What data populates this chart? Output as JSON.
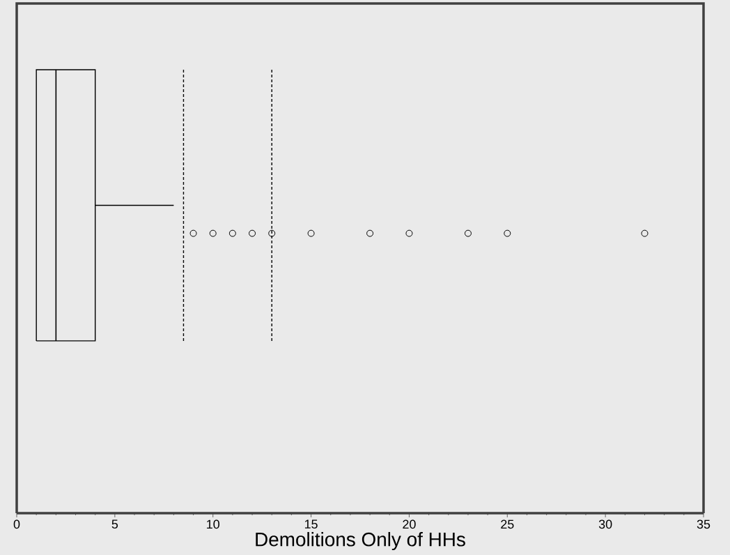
{
  "chart_data": {
    "type": "box",
    "orientation": "horizontal",
    "xlabel": "Demolitions Only of HHs",
    "categories": [
      null
    ],
    "boxes": [
      {
        "low": 1,
        "q1": 1,
        "median": 2,
        "q3": 4,
        "high": 8,
        "outliers": [
          9,
          10,
          11,
          12,
          13,
          15,
          18,
          20,
          23,
          25,
          32
        ]
      }
    ],
    "xlim": [
      0,
      35
    ],
    "xticks": [
      0,
      5,
      10,
      15,
      20,
      25,
      30,
      35
    ],
    "ref_lines": [
      {
        "axis": "x",
        "value": 8.5,
        "line_style": "dashed"
      },
      {
        "axis": "x",
        "value": 13,
        "line_style": "dashed"
      }
    ],
    "tick_labels": "x",
    "marker": "circle"
  }
}
